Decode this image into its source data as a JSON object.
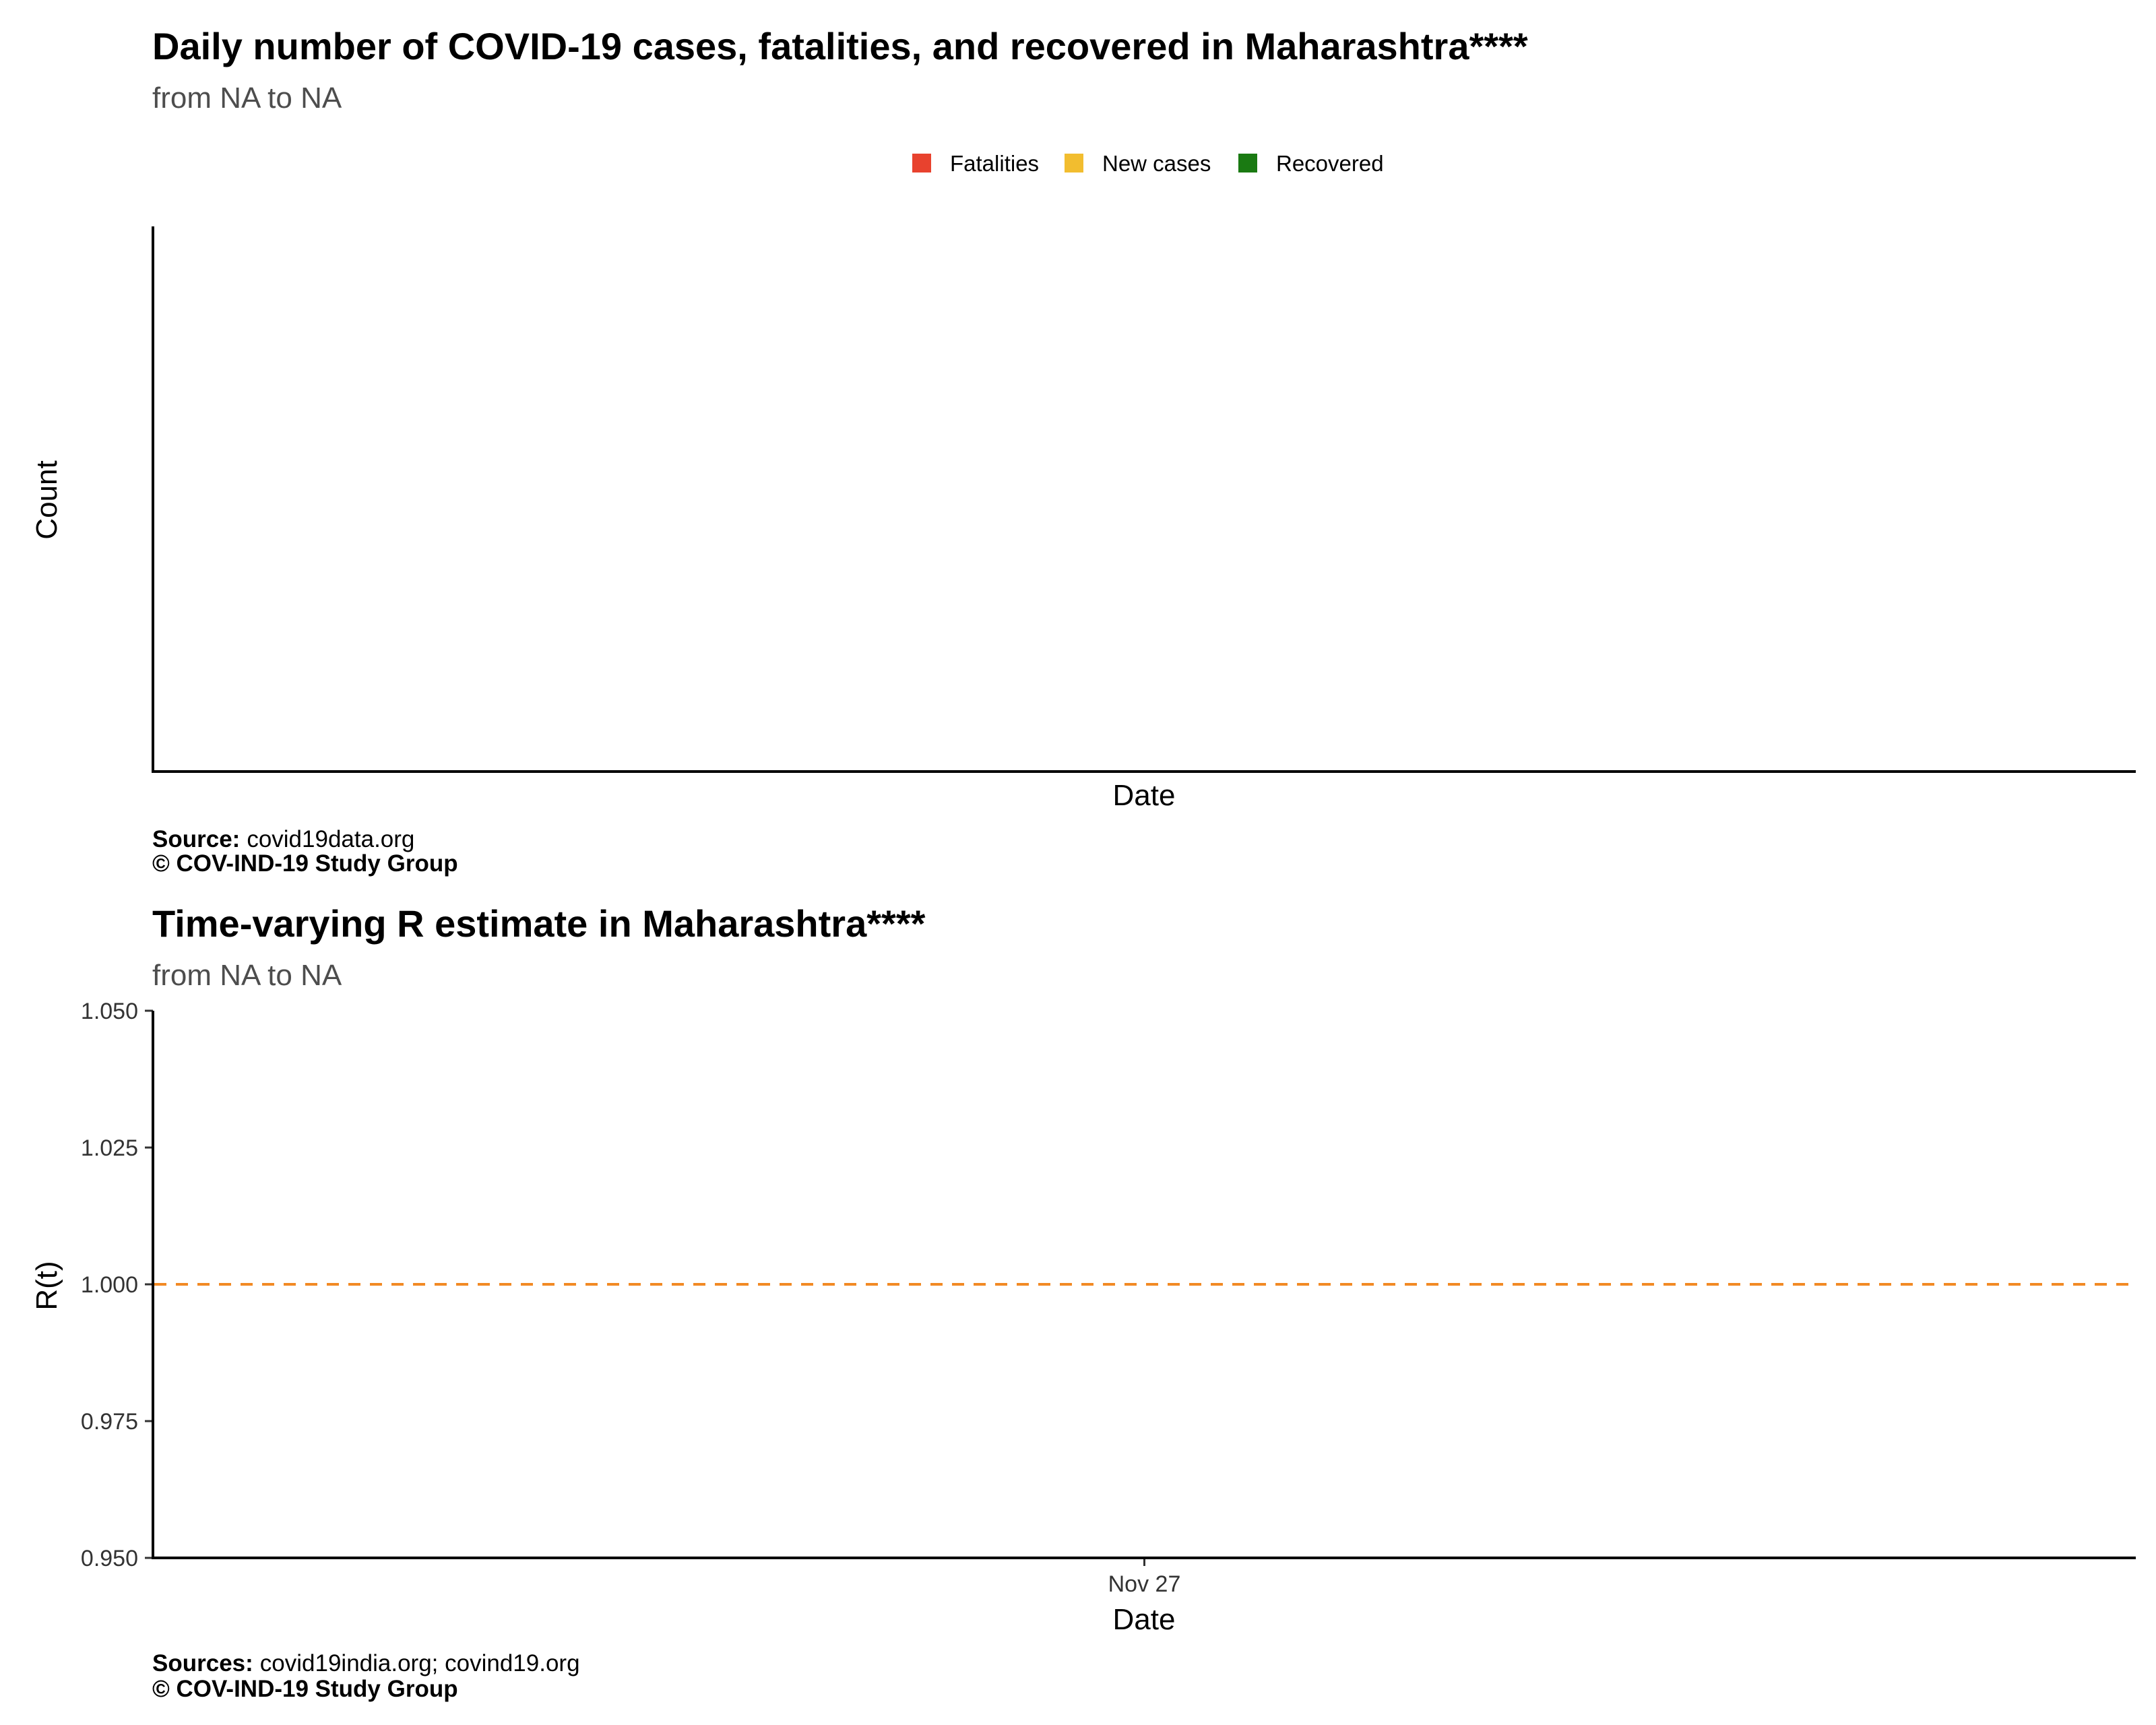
{
  "chart_data": [
    {
      "type": "bar",
      "title": "Daily number of COVID-19 cases, fatalities, and recovered in Maharashtra****",
      "subtitle": "from NA to NA",
      "xlabel": "Date",
      "ylabel": "Count",
      "legend_position": "top",
      "legend": [
        {
          "label": "Fatalities",
          "color": "#e8422e"
        },
        {
          "label": "New cases",
          "color": "#f2bd2f"
        },
        {
          "label": "Recovered",
          "color": "#1a7a12"
        }
      ],
      "series": [],
      "grid": false,
      "caption": {
        "source_label": "Source:",
        "source_text": "covid19data.org",
        "copyright": "© COV-IND-19 Study Group"
      }
    },
    {
      "type": "line",
      "title": "Time-varying R estimate in Maharashtra****",
      "subtitle": "from NA to NA",
      "xlabel": "Date",
      "ylabel": "R(t)",
      "ylim": [
        0.95,
        1.05
      ],
      "yticks": [
        "0.950",
        "0.975",
        "1.000",
        "1.025",
        "1.050"
      ],
      "xticks": [
        "Nov 27"
      ],
      "reference_line": {
        "y": 1.0,
        "style": "dashed",
        "color": "#f28a24"
      },
      "series": [],
      "grid": false,
      "caption": {
        "source_label": "Sources:",
        "source_text": "covid19india.org; covind19.org",
        "copyright": "© COV-IND-19 Study Group"
      }
    }
  ]
}
